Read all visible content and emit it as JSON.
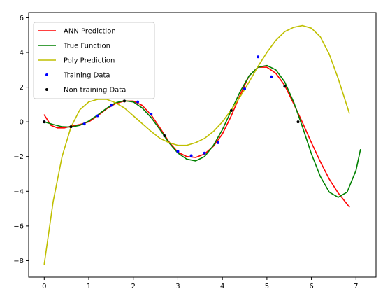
{
  "chart_data": {
    "type": "line",
    "title": "",
    "xlabel": "",
    "ylabel": "",
    "xlim": [
      -0.35,
      7.45
    ],
    "ylim": [
      -8.95,
      6.3
    ],
    "grid": false,
    "legend_placement": "top-left",
    "xticks": [
      0,
      1,
      2,
      3,
      4,
      5,
      6,
      7
    ],
    "yticks": [
      -8,
      -6,
      -4,
      -2,
      0,
      2,
      4,
      6
    ],
    "xtick_labels": [
      "0",
      "1",
      "2",
      "3",
      "4",
      "5",
      "6",
      "7"
    ],
    "ytick_labels": [
      "−8",
      "−6",
      "−4",
      "−2",
      "0",
      "2",
      "4",
      "6"
    ],
    "series": [
      {
        "name": "ANN Prediction",
        "kind": "line",
        "color": "#ff0000",
        "x": [
          0,
          0.15,
          0.3,
          0.45,
          0.6,
          0.8,
          1.0,
          1.2,
          1.4,
          1.6,
          1.8,
          2.0,
          2.2,
          2.4,
          2.6,
          2.8,
          3.0,
          3.2,
          3.4,
          3.6,
          3.8,
          4.0,
          4.2,
          4.4,
          4.6,
          4.8,
          5.0,
          5.2,
          5.4,
          5.6,
          5.8,
          6.0,
          6.2,
          6.4,
          6.6,
          6.85
        ],
        "y": [
          0.4,
          -0.2,
          -0.35,
          -0.35,
          -0.25,
          -0.15,
          0.0,
          0.35,
          0.75,
          1.05,
          1.2,
          1.2,
          0.95,
          0.4,
          -0.35,
          -1.15,
          -1.75,
          -2.0,
          -2.05,
          -1.85,
          -1.4,
          -0.7,
          0.35,
          1.55,
          2.65,
          3.15,
          3.15,
          2.8,
          2.1,
          1.05,
          -0.05,
          -1.2,
          -2.3,
          -3.3,
          -4.1,
          -4.9
        ]
      },
      {
        "name": "True Function",
        "kind": "line",
        "color": "#008000",
        "x": [
          0,
          0.2,
          0.4,
          0.6,
          0.8,
          1.0,
          1.2,
          1.4,
          1.6,
          1.8,
          2.0,
          2.2,
          2.4,
          2.6,
          2.8,
          3.0,
          3.2,
          3.4,
          3.6,
          3.8,
          4.0,
          4.2,
          4.4,
          4.6,
          4.8,
          5.0,
          5.2,
          5.4,
          5.6,
          5.8,
          6.0,
          6.2,
          6.4,
          6.6,
          6.8,
          7.0,
          7.1
        ],
        "y": [
          0.0,
          -0.15,
          -0.28,
          -0.3,
          -0.2,
          0.05,
          0.4,
          0.78,
          1.1,
          1.22,
          1.15,
          0.8,
          0.25,
          -0.45,
          -1.2,
          -1.8,
          -2.15,
          -2.25,
          -2.0,
          -1.35,
          -0.45,
          0.65,
          1.75,
          2.65,
          3.15,
          3.25,
          3.0,
          2.3,
          1.15,
          -0.3,
          -1.85,
          -3.15,
          -4.05,
          -4.35,
          -4.05,
          -2.8,
          -1.6
        ]
      },
      {
        "name": "Poly Prediction",
        "kind": "line",
        "color": "#bfbf00",
        "x": [
          0,
          0.2,
          0.4,
          0.6,
          0.8,
          1.0,
          1.2,
          1.4,
          1.6,
          1.8,
          2.0,
          2.2,
          2.4,
          2.6,
          2.8,
          3.0,
          3.2,
          3.4,
          3.6,
          3.8,
          4.0,
          4.2,
          4.4,
          4.6,
          4.8,
          5.0,
          5.2,
          5.4,
          5.6,
          5.8,
          6.0,
          6.2,
          6.4,
          6.6,
          6.85
        ],
        "y": [
          -8.2,
          -4.6,
          -2.0,
          -0.3,
          0.7,
          1.15,
          1.3,
          1.3,
          1.1,
          0.8,
          0.35,
          -0.1,
          -0.55,
          -0.95,
          -1.2,
          -1.35,
          -1.35,
          -1.2,
          -0.95,
          -0.55,
          0.0,
          0.7,
          1.45,
          2.3,
          3.2,
          4.0,
          4.7,
          5.2,
          5.45,
          5.55,
          5.4,
          4.9,
          3.9,
          2.5,
          0.5
        ]
      },
      {
        "name": "Training Data",
        "kind": "points",
        "color": "#0000ff",
        "x": [
          0.0,
          0.9,
          1.2,
          1.5,
          2.1,
          2.4,
          3.0,
          3.3,
          3.6,
          3.9,
          4.5,
          4.8,
          5.1
        ],
        "y": [
          0.0,
          -0.12,
          0.35,
          0.95,
          1.15,
          0.45,
          -1.7,
          -1.95,
          -1.8,
          -1.2,
          1.9,
          3.75,
          2.6
        ]
      },
      {
        "name": "Non-training Data",
        "kind": "points",
        "color": "#000000",
        "x": [
          0.0,
          0.6,
          1.8,
          2.7,
          4.2,
          5.4,
          5.7
        ],
        "y": [
          0.0,
          -0.28,
          1.2,
          -0.8,
          0.65,
          2.05,
          0.0
        ]
      }
    ]
  }
}
